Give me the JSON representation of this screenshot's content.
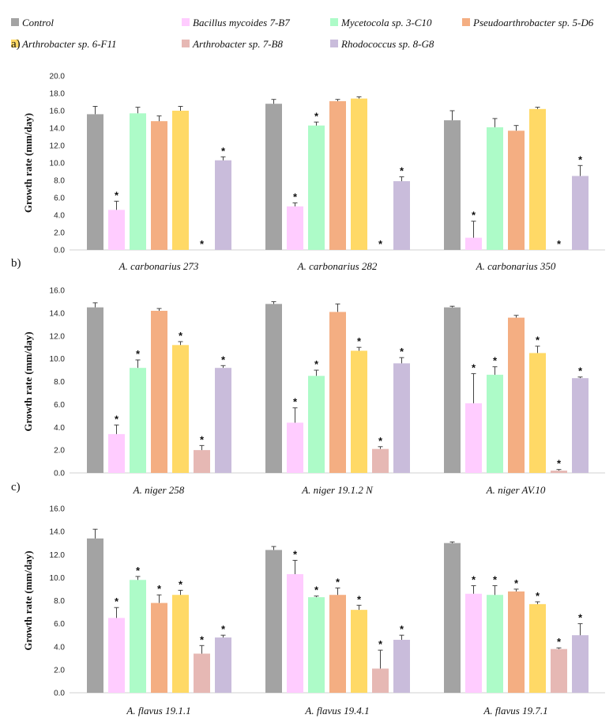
{
  "colors": {
    "Control": "#a3a3a3",
    "Bacillus mycoides 7-B7": "#ffccff",
    "Mycetocola sp. 3-C10": "#adfbc8",
    "Pseudoarthrobacter sp. 5-D6": "#f4ae82",
    "Arthrobacter sp. 6-F11": "#ffd966",
    "Arthrobacter sp. 7-B8": "#e6b8b4",
    "Rhodococcus sp. 8-G8": "#c9bcdb"
  },
  "legend": [
    "Control",
    "Bacillus mycoides 7-B7",
    "Mycetocola sp. 3-C10",
    "Pseudoarthrobacter sp. 5-D6",
    "Arthrobacter sp. 6-F11",
    "Arthrobacter sp. 7-B8",
    "Rhodococcus sp. 8-G8"
  ],
  "chart_data": [
    {
      "type": "bar",
      "panel": "a)",
      "ylabel": "Growth rate (mm/day)",
      "ylim": [
        0,
        20
      ],
      "yticks": [
        "0.0",
        "2.0",
        "4.0",
        "6.0",
        "8.0",
        "10.0",
        "12.0",
        "14.0",
        "16.0",
        "18.0",
        "20.0"
      ],
      "categories": [
        "A. carbonarius 273",
        "A. carbonarius 282",
        "A. carbonarius 350"
      ],
      "series": [
        {
          "name": "Control",
          "values": [
            15.6,
            16.8,
            14.9
          ],
          "errors": [
            0.9,
            0.5,
            1.1
          ],
          "stars": [
            false,
            false,
            false
          ]
        },
        {
          "name": "Bacillus mycoides 7-B7",
          "values": [
            4.6,
            5.0,
            1.4
          ],
          "errors": [
            1.0,
            0.4,
            1.9
          ],
          "stars": [
            true,
            true,
            true
          ]
        },
        {
          "name": "Mycetocola sp. 3-C10",
          "values": [
            15.7,
            14.3,
            14.1
          ],
          "errors": [
            0.7,
            0.4,
            1.0
          ],
          "stars": [
            false,
            true,
            false
          ]
        },
        {
          "name": "Pseudoarthrobacter sp. 5-D6",
          "values": [
            14.8,
            17.1,
            13.7
          ],
          "errors": [
            0.6,
            0.2,
            0.6
          ],
          "stars": [
            false,
            false,
            false
          ]
        },
        {
          "name": "Arthrobacter sp. 6-F11",
          "values": [
            16.0,
            17.4,
            16.2
          ],
          "errors": [
            0.5,
            0.2,
            0.2
          ],
          "stars": [
            false,
            false,
            false
          ]
        },
        {
          "name": "Arthrobacter sp. 7-B8",
          "values": [
            0.0,
            0.0,
            0.0
          ],
          "errors": [
            0,
            0,
            0
          ],
          "stars": [
            true,
            true,
            true
          ]
        },
        {
          "name": "Rhodococcus sp. 8-G8",
          "values": [
            10.3,
            7.9,
            8.5
          ],
          "errors": [
            0.4,
            0.5,
            1.2
          ],
          "stars": [
            true,
            true,
            true
          ]
        }
      ]
    },
    {
      "type": "bar",
      "panel": "b)",
      "ylabel": "Growth rate (mm/day)",
      "ylim": [
        0,
        16
      ],
      "yticks": [
        "0.0",
        "2.0",
        "4.0",
        "6.0",
        "8.0",
        "10.0",
        "12.0",
        "14.0",
        "16.0"
      ],
      "categories": [
        "A. niger 258",
        "A. niger 19.1.2 N",
        "A. niger AV.10"
      ],
      "series": [
        {
          "name": "Control",
          "values": [
            14.5,
            14.8,
            14.5
          ],
          "errors": [
            0.4,
            0.2,
            0.1
          ],
          "stars": [
            false,
            false,
            false
          ]
        },
        {
          "name": "Bacillus mycoides 7-B7",
          "values": [
            3.4,
            4.4,
            6.1
          ],
          "errors": [
            0.8,
            1.3,
            2.6
          ],
          "stars": [
            true,
            true,
            true
          ]
        },
        {
          "name": "Mycetocola sp. 3-C10",
          "values": [
            9.2,
            8.5,
            8.6
          ],
          "errors": [
            0.7,
            0.5,
            0.7
          ],
          "stars": [
            true,
            true,
            true
          ]
        },
        {
          "name": "Pseudoarthrobacter sp. 5-D6",
          "values": [
            14.2,
            14.1,
            13.6
          ],
          "errors": [
            0.2,
            0.7,
            0.2
          ],
          "stars": [
            false,
            false,
            false
          ]
        },
        {
          "name": "Arthrobacter sp. 6-F11",
          "values": [
            11.2,
            10.7,
            10.5
          ],
          "errors": [
            0.3,
            0.3,
            0.6
          ],
          "stars": [
            true,
            true,
            true
          ]
        },
        {
          "name": "Arthrobacter sp. 7-B8",
          "values": [
            2.0,
            2.1,
            0.2
          ],
          "errors": [
            0.4,
            0.2,
            0.1
          ],
          "stars": [
            true,
            true,
            true
          ]
        },
        {
          "name": "Rhodococcus sp. 8-G8",
          "values": [
            9.2,
            9.6,
            8.3
          ],
          "errors": [
            0.2,
            0.5,
            0.1
          ],
          "stars": [
            true,
            true,
            true
          ]
        }
      ]
    },
    {
      "type": "bar",
      "panel": "c)",
      "ylabel": "Growth rate (mm/day)",
      "ylim": [
        0,
        16
      ],
      "yticks": [
        "0.0",
        "2.0",
        "4.0",
        "6.0",
        "8.0",
        "10.0",
        "12.0",
        "14.0",
        "16.0"
      ],
      "categories": [
        "A. flavus 19.1.1",
        "A. flavus 19.4.1",
        "A. flavus 19.7.1"
      ],
      "series": [
        {
          "name": "Control",
          "values": [
            13.4,
            12.4,
            13.0
          ],
          "errors": [
            0.8,
            0.3,
            0.1
          ],
          "stars": [
            false,
            false,
            false
          ]
        },
        {
          "name": "Bacillus mycoides 7-B7",
          "values": [
            6.5,
            10.3,
            8.6
          ],
          "errors": [
            0.9,
            1.2,
            0.7
          ],
          "stars": [
            true,
            true,
            true
          ]
        },
        {
          "name": "Mycetocola sp. 3-C10",
          "values": [
            9.8,
            8.3,
            8.5
          ],
          "errors": [
            0.3,
            0.1,
            0.8
          ],
          "stars": [
            true,
            true,
            true
          ]
        },
        {
          "name": "Pseudoarthrobacter sp. 5-D6",
          "values": [
            7.8,
            8.5,
            8.8
          ],
          "errors": [
            0.7,
            0.6,
            0.2
          ],
          "stars": [
            true,
            true,
            true
          ]
        },
        {
          "name": "Arthrobacter sp. 6-F11",
          "values": [
            8.5,
            7.2,
            7.7
          ],
          "errors": [
            0.4,
            0.4,
            0.2
          ],
          "stars": [
            true,
            true,
            true
          ]
        },
        {
          "name": "Arthrobacter sp. 7-B8",
          "values": [
            3.4,
            2.1,
            3.8
          ],
          "errors": [
            0.7,
            1.6,
            0.1
          ],
          "stars": [
            true,
            true,
            true
          ]
        },
        {
          "name": "Rhodococcus sp. 8-G8",
          "values": [
            4.8,
            4.6,
            5.0
          ],
          "errors": [
            0.2,
            0.4,
            1.0
          ],
          "stars": [
            true,
            true,
            true
          ]
        }
      ]
    }
  ]
}
